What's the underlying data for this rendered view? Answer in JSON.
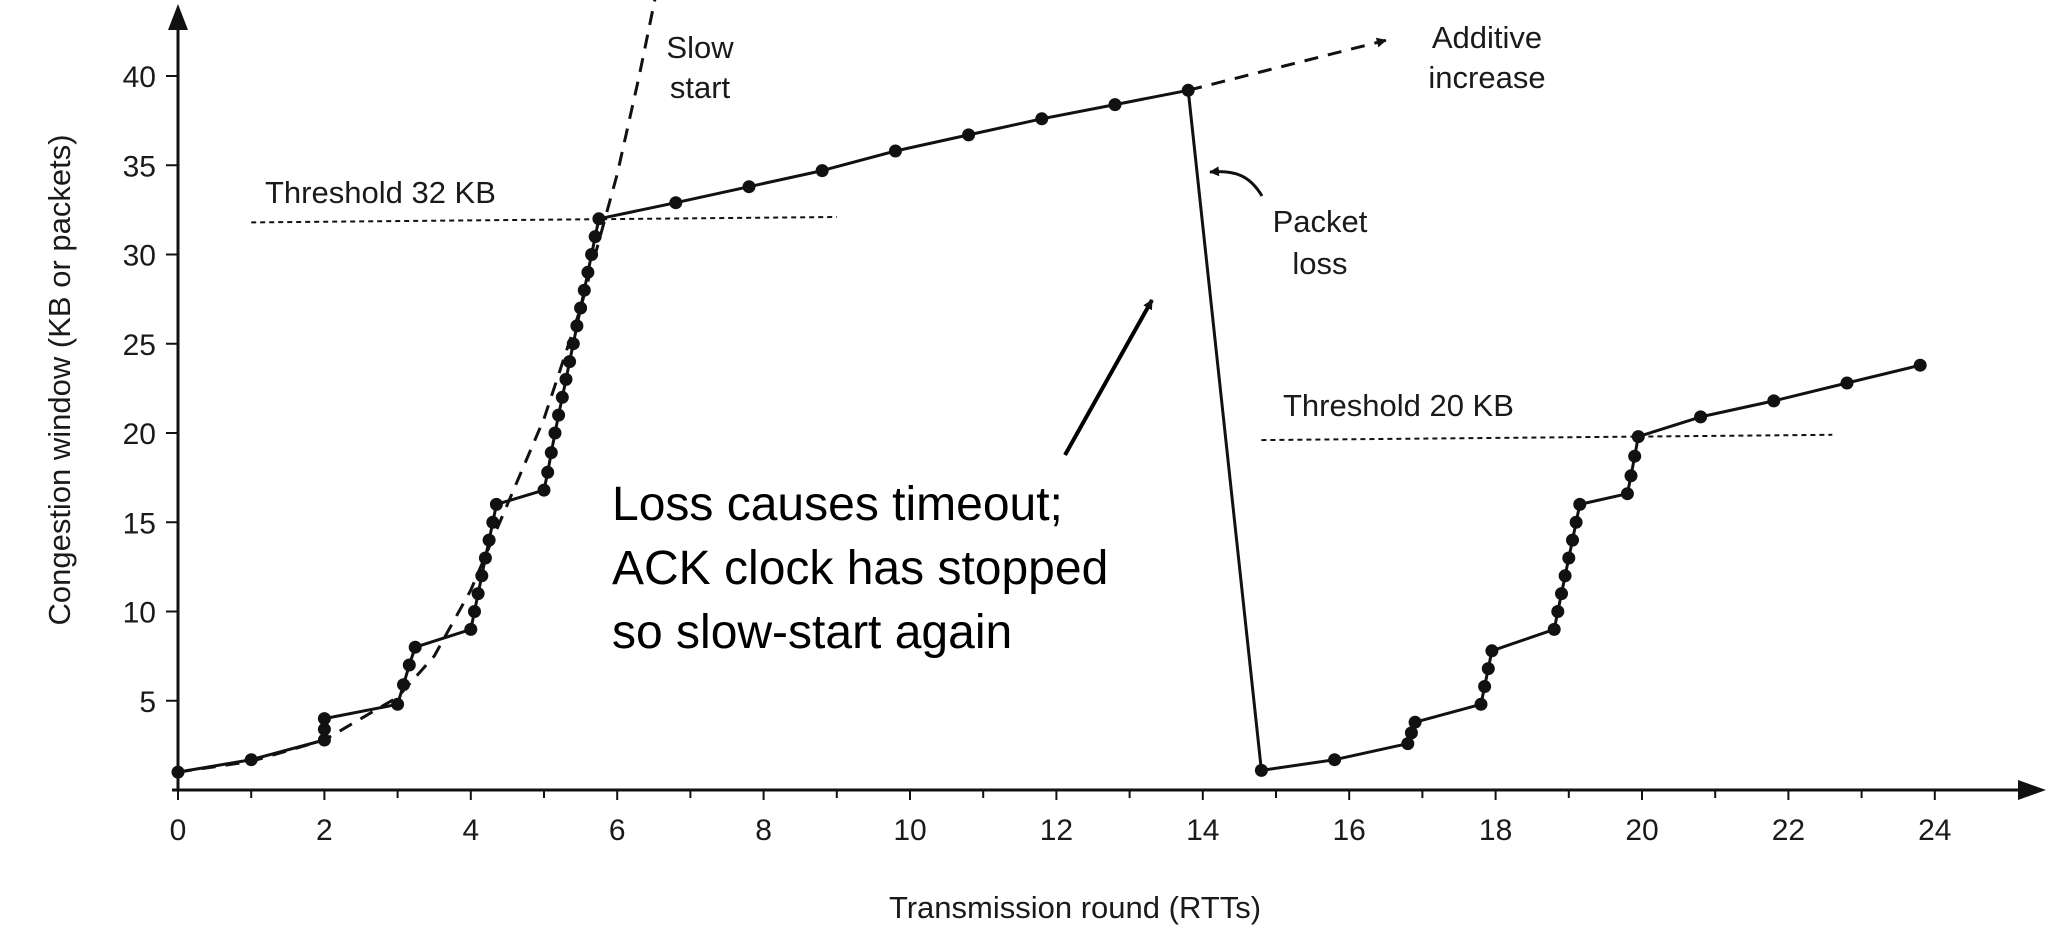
{
  "chart_data": {
    "type": "line",
    "xlabel": "Transmission round (RTTs)",
    "ylabel": "Congestion window  (KB or packets)",
    "xlim": [
      0,
      25
    ],
    "ylim": [
      0,
      43
    ],
    "x_ticks": [
      "0",
      "2",
      "4",
      "6",
      "8",
      "10",
      "12",
      "14",
      "16",
      "18",
      "20",
      "22",
      "24"
    ],
    "y_ticks": [
      "5",
      "10",
      "15",
      "20",
      "25",
      "30",
      "35",
      "40"
    ],
    "grid": false,
    "series": [
      {
        "role": "congestion-window",
        "points": [
          [
            0,
            1
          ],
          [
            1,
            1.7
          ],
          [
            2,
            2.8
          ],
          [
            2,
            3.4
          ],
          [
            2,
            4
          ],
          [
            3,
            4.8
          ],
          [
            3.08,
            5.9
          ],
          [
            3.16,
            7
          ],
          [
            3.24,
            8
          ],
          [
            4,
            9
          ],
          [
            4.05,
            10
          ],
          [
            4.1,
            11
          ],
          [
            4.15,
            12
          ],
          [
            4.2,
            13
          ],
          [
            4.25,
            14
          ],
          [
            4.3,
            15
          ],
          [
            4.35,
            16
          ],
          [
            5,
            16.8
          ],
          [
            5.05,
            17.8
          ],
          [
            5.1,
            18.9
          ],
          [
            5.15,
            20
          ],
          [
            5.2,
            21
          ],
          [
            5.25,
            22
          ],
          [
            5.3,
            23
          ],
          [
            5.35,
            24
          ],
          [
            5.4,
            25
          ],
          [
            5.45,
            26
          ],
          [
            5.5,
            27
          ],
          [
            5.55,
            28
          ],
          [
            5.6,
            29
          ],
          [
            5.65,
            30
          ],
          [
            5.7,
            31
          ],
          [
            5.75,
            32
          ],
          [
            6.8,
            32.9
          ],
          [
            7.8,
            33.8
          ],
          [
            8.8,
            34.7
          ],
          [
            9.8,
            35.8
          ],
          [
            10.8,
            36.7
          ],
          [
            11.8,
            37.6
          ],
          [
            12.8,
            38.4
          ],
          [
            13.8,
            39.2
          ],
          [
            14.8,
            1.1
          ],
          [
            15.8,
            1.7
          ],
          [
            16.8,
            2.6
          ],
          [
            16.85,
            3.2
          ],
          [
            16.9,
            3.8
          ],
          [
            17.8,
            4.8
          ],
          [
            17.85,
            5.8
          ],
          [
            17.9,
            6.8
          ],
          [
            17.95,
            7.8
          ],
          [
            18.8,
            9
          ],
          [
            18.85,
            10
          ],
          [
            18.9,
            11
          ],
          [
            18.95,
            12
          ],
          [
            19.0,
            13
          ],
          [
            19.05,
            14
          ],
          [
            19.1,
            15
          ],
          [
            19.15,
            16
          ],
          [
            19.8,
            16.6
          ],
          [
            19.85,
            17.6
          ],
          [
            19.9,
            18.7
          ],
          [
            19.95,
            19.8
          ],
          [
            20.8,
            20.9
          ],
          [
            21.8,
            21.8
          ],
          [
            22.8,
            22.8
          ],
          [
            23.8,
            23.8
          ]
        ]
      },
      {
        "role": "slow-start-curve",
        "style": "dashed",
        "points": [
          [
            0,
            1
          ],
          [
            1,
            1.6
          ],
          [
            2,
            2.8
          ],
          [
            3,
            5.2
          ],
          [
            3.5,
            7.5
          ],
          [
            4,
            11.2
          ],
          [
            4.5,
            16
          ],
          [
            5,
            20.8
          ],
          [
            5.5,
            27
          ],
          [
            6,
            34.5
          ],
          [
            6.3,
            40
          ],
          [
            6.55,
            45
          ]
        ]
      },
      {
        "role": "additive-increase-extension",
        "style": "dashed",
        "points": [
          [
            13.8,
            39.2
          ],
          [
            16.5,
            42
          ]
        ]
      },
      {
        "role": "threshold-32",
        "style": "dotted",
        "points": [
          [
            1,
            31.8
          ],
          [
            9,
            32.1
          ]
        ]
      },
      {
        "role": "threshold-20",
        "style": "dotted",
        "points": [
          [
            14.8,
            19.6
          ],
          [
            22.6,
            19.9
          ]
        ]
      }
    ],
    "annotations": [
      {
        "key": "slow_start",
        "lines": [
          "Slow",
          "start"
        ]
      },
      {
        "key": "additive_increase",
        "lines": [
          "Additive",
          "increase"
        ]
      },
      {
        "key": "threshold_32",
        "lines": [
          "Threshold 32 KB"
        ]
      },
      {
        "key": "threshold_20",
        "lines": [
          "Threshold 20 KB"
        ]
      },
      {
        "key": "packet_loss",
        "lines": [
          "Packet",
          "loss"
        ]
      },
      {
        "key": "timeout",
        "lines": [
          "Loss causes timeout;",
          "ACK clock has stopped",
          "so slow-start again"
        ]
      }
    ]
  }
}
